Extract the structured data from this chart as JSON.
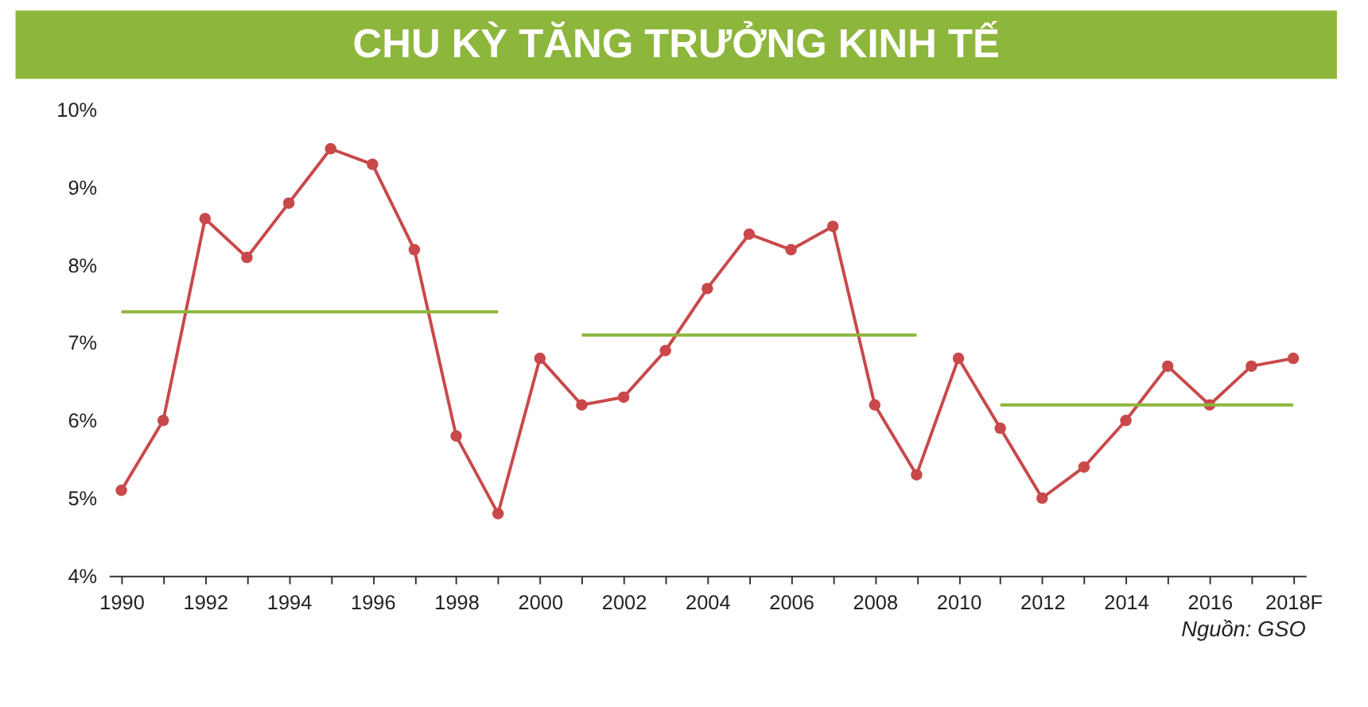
{
  "chart_data": {
    "type": "line",
    "title": "CHU KỲ TĂNG TRƯỞNG KINH TẾ",
    "categories": [
      "1990",
      null,
      "1992",
      null,
      "1994",
      null,
      "1996",
      null,
      "1998",
      null,
      "2000",
      null,
      "2002",
      null,
      "2004",
      null,
      "2006",
      null,
      "2008",
      null,
      "2010",
      null,
      "2012",
      null,
      "2014",
      null,
      "2016",
      null,
      "2018F"
    ],
    "series": [
      {
        "color": "#c9484a",
        "marker": "circle",
        "values": [
          5.1,
          6.0,
          8.6,
          8.1,
          8.8,
          9.5,
          9.3,
          8.2,
          5.8,
          4.8,
          6.8,
          6.2,
          6.3,
          6.9,
          7.7,
          8.4,
          8.2,
          8.5,
          6.2,
          5.3,
          6.8,
          5.9,
          5.0,
          5.4,
          6.0,
          6.7,
          6.2,
          6.7,
          6.8
        ]
      },
      {
        "color": "#8db63c",
        "marker": "none",
        "values": [
          7.4,
          7.4,
          7.4,
          7.4,
          7.4,
          7.4,
          7.4,
          7.4,
          7.4,
          7.4,
          null,
          null,
          null,
          null,
          null,
          null,
          null,
          null,
          null,
          null,
          null,
          null,
          null,
          null,
          null,
          null,
          null,
          null,
          null
        ]
      },
      {
        "color": "#8db63c",
        "marker": "none",
        "values": [
          null,
          null,
          null,
          null,
          null,
          null,
          null,
          null,
          null,
          null,
          null,
          7.1,
          7.1,
          7.1,
          7.1,
          7.1,
          7.1,
          7.1,
          7.1,
          7.1,
          null,
          null,
          null,
          null,
          null,
          null,
          null,
          null,
          null
        ]
      },
      {
        "color": "#8db63c",
        "marker": "none",
        "values": [
          null,
          null,
          null,
          null,
          null,
          null,
          null,
          null,
          null,
          null,
          null,
          null,
          null,
          null,
          null,
          null,
          null,
          null,
          null,
          null,
          null,
          6.2,
          6.2,
          6.2,
          6.2,
          6.2,
          6.2,
          6.2,
          6.2
        ]
      }
    ],
    "ylim": [
      4,
      10
    ],
    "yticks": [
      {
        "value": 4,
        "label": "4%"
      },
      {
        "value": 5,
        "label": "5%"
      },
      {
        "value": 6,
        "label": "6%"
      },
      {
        "value": 7,
        "label": "7%"
      },
      {
        "value": 8,
        "label": "8%"
      },
      {
        "value": 9,
        "label": "9%"
      },
      {
        "value": 10,
        "label": "10%"
      }
    ],
    "grid": false,
    "annotations": [
      "Nguồn: GSO"
    ]
  }
}
